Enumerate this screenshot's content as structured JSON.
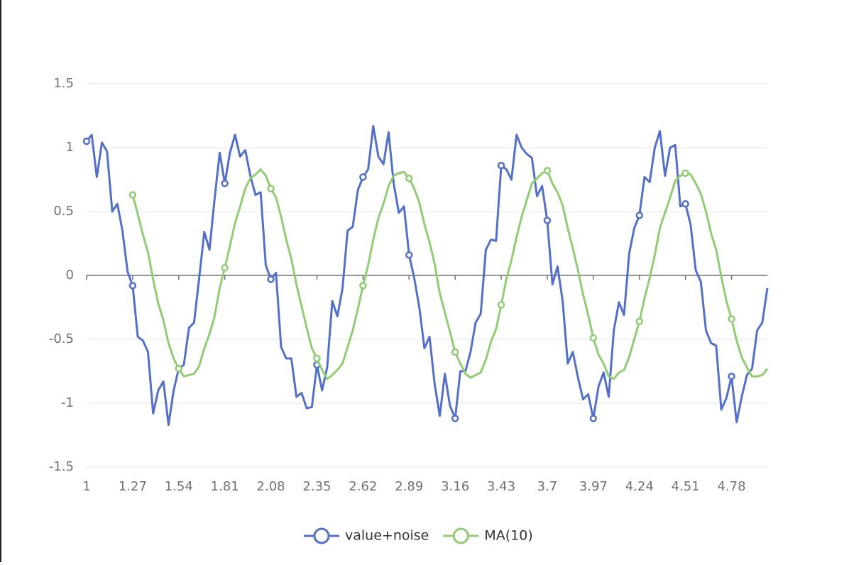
{
  "chart_data": {
    "type": "line",
    "categories": [
      "1",
      null,
      null,
      null,
      null,
      null,
      null,
      null,
      null,
      "1.27",
      null,
      null,
      null,
      null,
      null,
      null,
      null,
      null,
      "1.54",
      null,
      null,
      null,
      null,
      null,
      null,
      null,
      null,
      "1.81",
      null,
      null,
      null,
      null,
      null,
      null,
      null,
      null,
      "2.08",
      null,
      null,
      null,
      null,
      null,
      null,
      null,
      null,
      "2.35",
      null,
      null,
      null,
      null,
      null,
      null,
      null,
      null,
      "2.62",
      null,
      null,
      null,
      null,
      null,
      null,
      null,
      null,
      "2.89",
      null,
      null,
      null,
      null,
      null,
      null,
      null,
      null,
      "3.16",
      null,
      null,
      null,
      null,
      null,
      null,
      null,
      null,
      "3.43",
      null,
      null,
      null,
      null,
      null,
      null,
      null,
      null,
      "3.7",
      null,
      null,
      null,
      null,
      null,
      null,
      null,
      null,
      "3.97",
      null,
      null,
      null,
      null,
      null,
      null,
      null,
      null,
      "4.24",
      null,
      null,
      null,
      null,
      null,
      null,
      null,
      null,
      "4.51",
      null,
      null,
      null,
      null,
      null,
      null,
      null,
      null,
      "4.78",
      null,
      null,
      null,
      null,
      null,
      null,
      null
    ],
    "series": [
      {
        "name": "value+noise",
        "color": "#5470c6",
        "values": [
          1.05,
          1.1,
          0.77,
          1.04,
          0.97,
          0.5,
          0.56,
          0.35,
          0.03,
          -0.08,
          -0.48,
          -0.51,
          -0.6,
          -1.08,
          -0.9,
          -0.83,
          -1.17,
          -0.9,
          -0.73,
          -0.7,
          -0.41,
          -0.37,
          -0.02,
          0.34,
          0.2,
          0.6,
          0.96,
          0.72,
          0.96,
          1.1,
          0.93,
          0.98,
          0.78,
          0.63,
          0.65,
          0.08,
          -0.03,
          0.02,
          -0.56,
          -0.65,
          -0.65,
          -0.95,
          -0.92,
          -1.04,
          -1.03,
          -0.7,
          -0.9,
          -0.72,
          -0.2,
          -0.32,
          -0.1,
          0.35,
          0.38,
          0.67,
          0.77,
          0.83,
          1.17,
          0.93,
          0.87,
          1.12,
          0.72,
          0.49,
          0.54,
          0.16,
          -0.02,
          -0.25,
          -0.57,
          -0.48,
          -0.85,
          -1.1,
          -0.77,
          -1.02,
          -1.12,
          -0.75,
          -0.75,
          -0.6,
          -0.37,
          -0.3,
          0.2,
          0.28,
          0.27,
          0.86,
          0.83,
          0.75,
          1.1,
          1.0,
          0.95,
          0.92,
          0.62,
          0.7,
          0.43,
          -0.07,
          0.07,
          -0.2,
          -0.69,
          -0.6,
          -0.8,
          -0.97,
          -0.93,
          -1.12,
          -0.87,
          -0.76,
          -0.95,
          -0.43,
          -0.21,
          -0.31,
          0.17,
          0.37,
          0.47,
          0.77,
          0.73,
          1.0,
          1.13,
          0.78,
          1.0,
          1.02,
          0.54,
          0.56,
          0.4,
          0.04,
          -0.05,
          -0.43,
          -0.53,
          -0.55,
          -1.05,
          -0.96,
          -0.79,
          -1.15,
          -0.95,
          -0.78,
          -0.73,
          -0.43,
          -0.37,
          -0.1
        ]
      },
      {
        "name": "MA(10)",
        "color": "#91cc75",
        "values": [
          null,
          null,
          null,
          null,
          null,
          null,
          null,
          null,
          null,
          0.63,
          0.48,
          0.32,
          0.18,
          -0.03,
          -0.22,
          -0.35,
          -0.53,
          -0.65,
          -0.73,
          -0.79,
          -0.78,
          -0.77,
          -0.71,
          -0.57,
          -0.46,
          -0.32,
          -0.1,
          0.06,
          0.23,
          0.41,
          0.54,
          0.68,
          0.76,
          0.79,
          0.83,
          0.78,
          0.68,
          0.61,
          0.46,
          0.28,
          0.13,
          -0.07,
          -0.24,
          -0.41,
          -0.57,
          -0.65,
          -0.74,
          -0.81,
          -0.78,
          -0.74,
          -0.69,
          -0.56,
          -0.43,
          -0.26,
          -0.08,
          0.08,
          0.28,
          0.45,
          0.56,
          0.7,
          0.78,
          0.8,
          0.81,
          0.76,
          0.68,
          0.57,
          0.4,
          0.26,
          0.09,
          -0.14,
          -0.29,
          -0.44,
          -0.6,
          -0.69,
          -0.77,
          -0.8,
          -0.78,
          -0.76,
          -0.66,
          -0.52,
          -0.42,
          -0.23,
          -0.03,
          0.12,
          0.3,
          0.46,
          0.59,
          0.72,
          0.76,
          0.8,
          0.82,
          0.72,
          0.65,
          0.55,
          0.37,
          0.21,
          0.04,
          -0.15,
          -0.31,
          -0.49,
          -0.62,
          -0.69,
          -0.79,
          -0.81,
          -0.76,
          -0.74,
          -0.64,
          -0.5,
          -0.36,
          -0.18,
          -0.02,
          0.16,
          0.37,
          0.49,
          0.61,
          0.74,
          0.78,
          0.8,
          0.79,
          0.72,
          0.64,
          0.5,
          0.33,
          0.2,
          -0.01,
          -0.2,
          -0.34,
          -0.51,
          -0.64,
          -0.72,
          -0.79,
          -0.79,
          -0.78,
          -0.73
        ]
      }
    ],
    "ylim": [
      -1.5,
      1.5
    ],
    "yticks": [
      -1.5,
      -1,
      -0.5,
      0,
      0.5,
      1,
      1.5
    ],
    "grid": true,
    "legend": "bottom"
  }
}
